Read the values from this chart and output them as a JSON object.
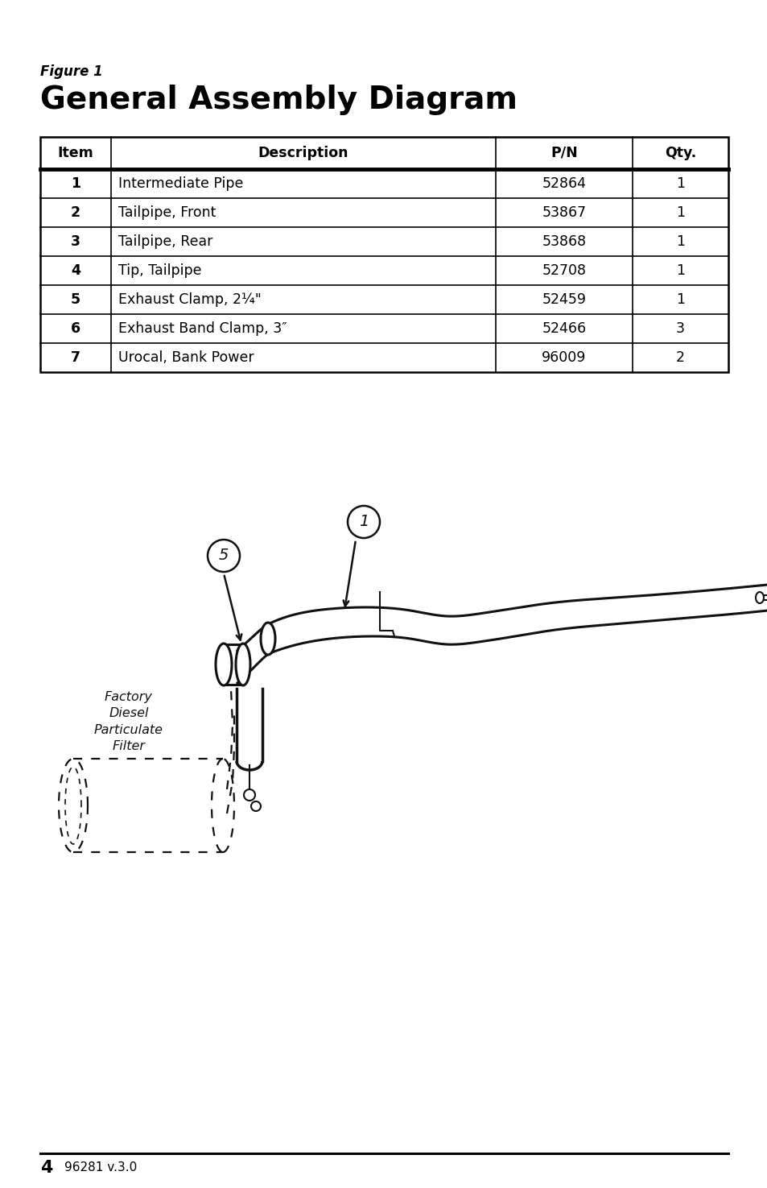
{
  "figure_label": "Figure 1",
  "title": "General Assembly Diagram",
  "table_headers": [
    "Item",
    "Description",
    "P/N",
    "Qty."
  ],
  "table_rows": [
    [
      "1",
      "Intermediate Pipe",
      "52864",
      "1"
    ],
    [
      "2",
      "Tailpipe, Front",
      "53867",
      "1"
    ],
    [
      "3",
      "Tailpipe, Rear",
      "53868",
      "1"
    ],
    [
      "4",
      "Tip, Tailpipe",
      "52708",
      "1"
    ],
    [
      "5",
      "Exhaust Clamp, 2¼\"",
      "52459",
      "1"
    ],
    [
      "6",
      "Exhaust Band Clamp, 3″",
      "52466",
      "3"
    ],
    [
      "7",
      "Urocal, Bank Power",
      "96009",
      "2"
    ]
  ],
  "footer_page": "4",
  "footer_text": "96281 v.3.0",
  "bg_color": "#ffffff",
  "text_color": "#000000"
}
